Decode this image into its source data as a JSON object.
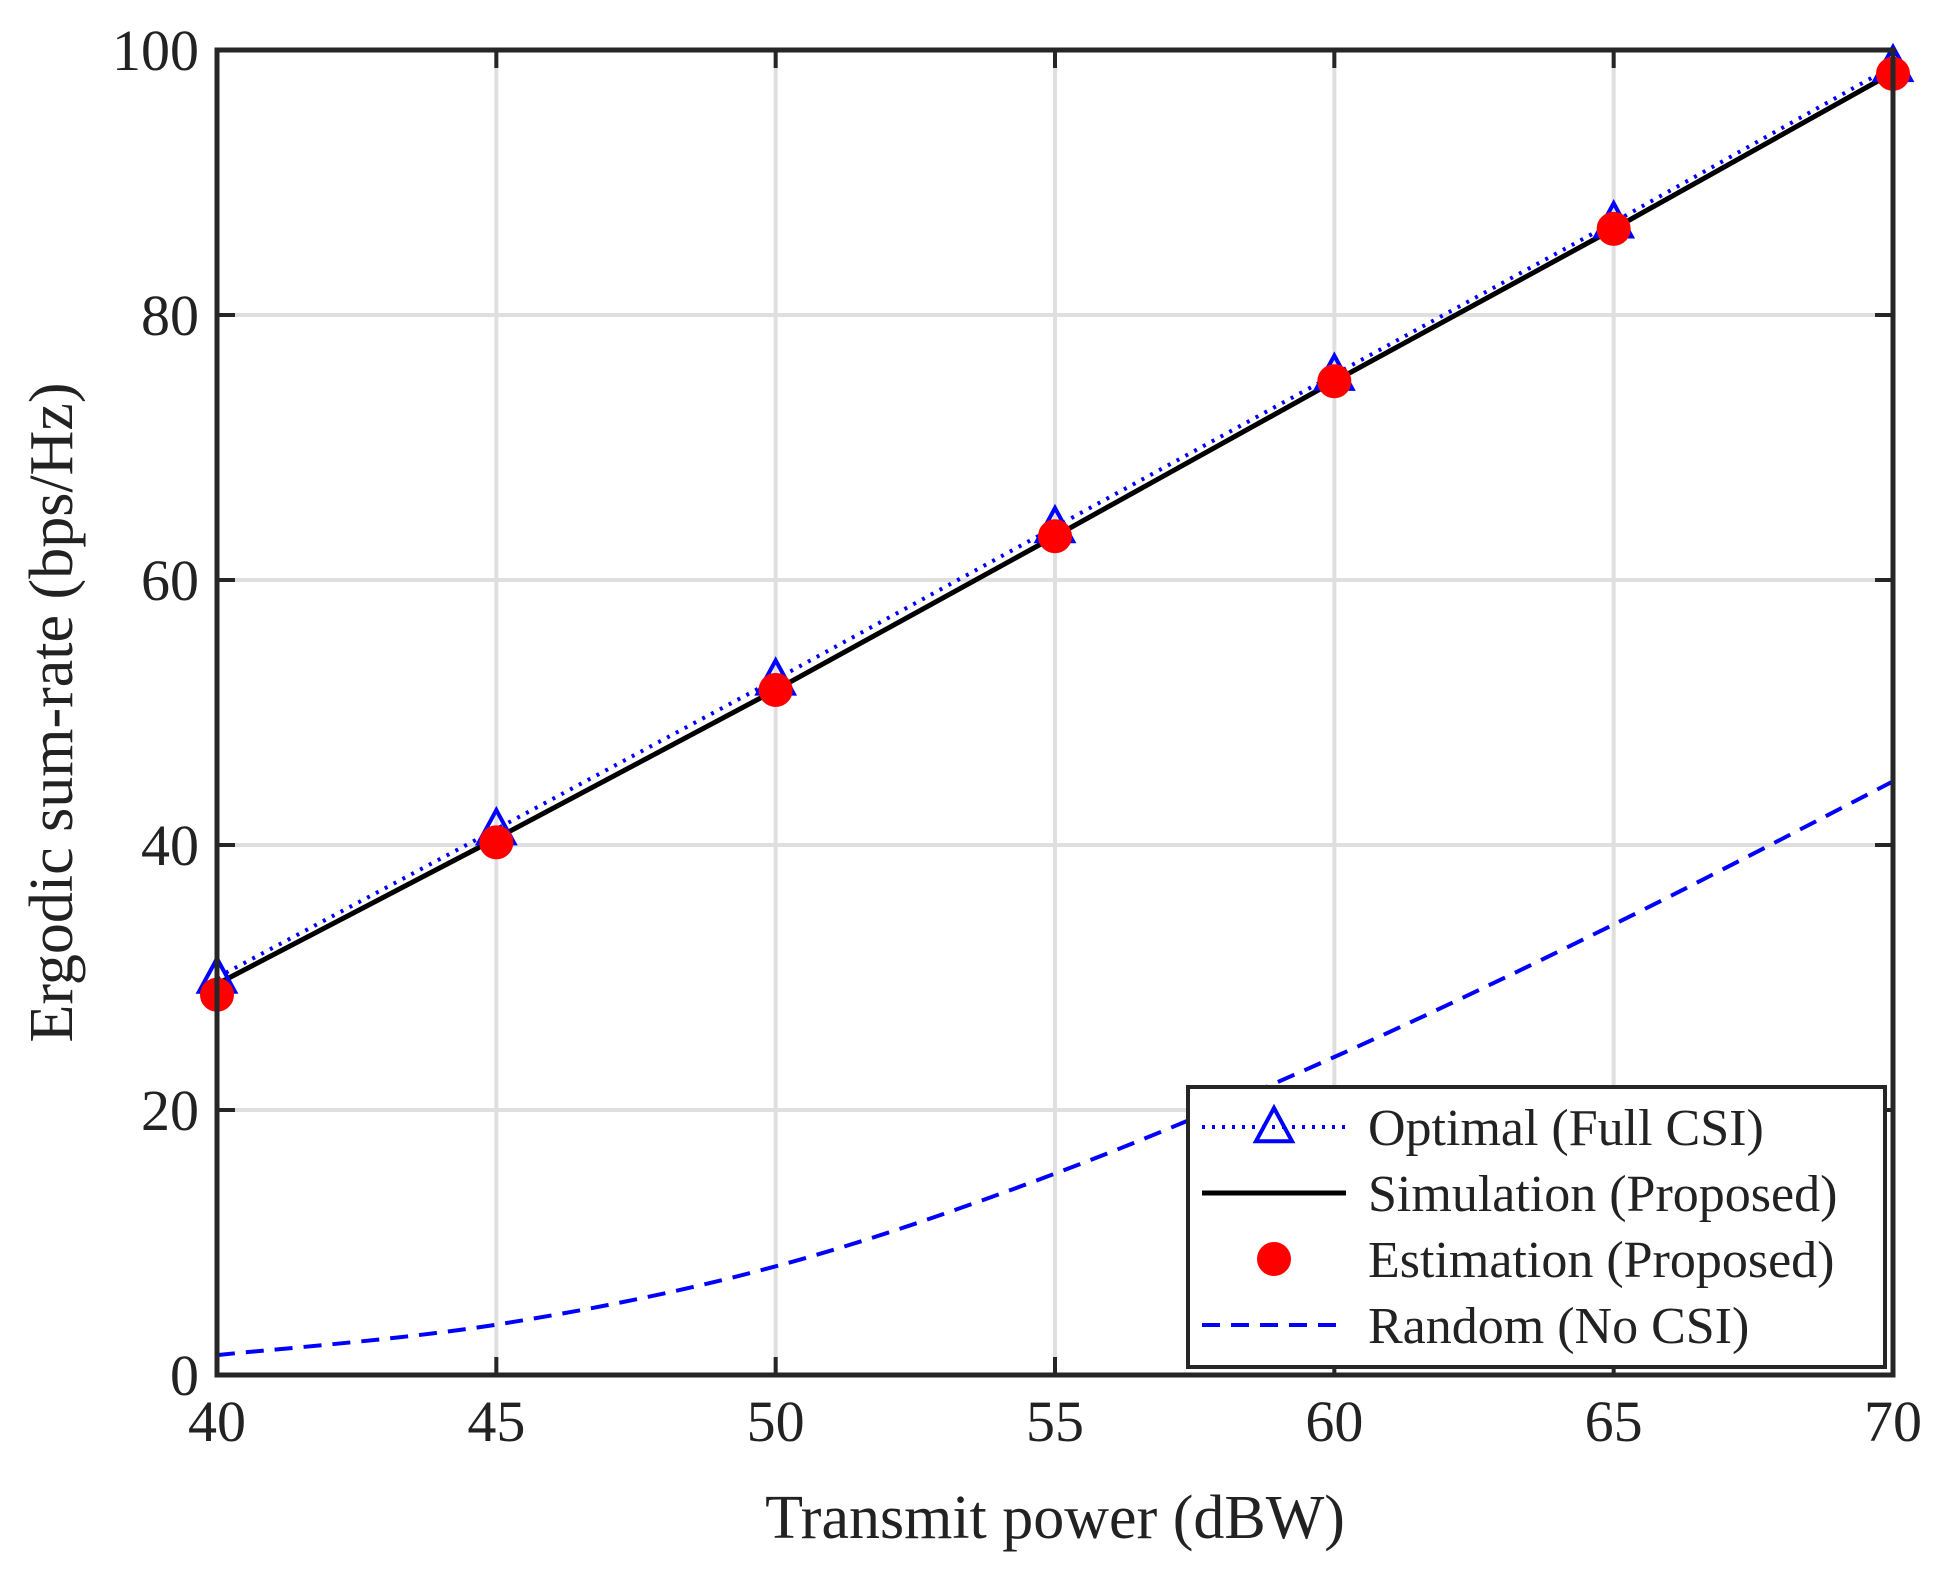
{
  "chart_data": {
    "type": "line",
    "title": "",
    "xlabel": "Transmit power (dBW)",
    "ylabel": "Ergodic sum-rate (bps/Hz)",
    "xlim": [
      40,
      70
    ],
    "ylim": [
      0,
      100
    ],
    "xticks": [
      40,
      45,
      50,
      55,
      60,
      65,
      70
    ],
    "yticks": [
      0,
      20,
      40,
      60,
      80,
      100
    ],
    "grid": true,
    "legend_position": "bottom-right",
    "x": [
      40,
      45,
      50,
      55,
      60,
      65,
      70
    ],
    "series": [
      {
        "name": "Optimal (Full CSI)",
        "values": [
          30,
          41.2,
          52.5,
          64,
          75.5,
          87,
          98.8
        ],
        "color": "#0000ff",
        "line": "dotted",
        "marker": "triangle-open"
      },
      {
        "name": "Simulation (Proposed)",
        "values": [
          29.5,
          40.5,
          51.7,
          63.3,
          75,
          86.5,
          98.3
        ],
        "color": "#000000",
        "line": "solid",
        "marker": "none"
      },
      {
        "name": "Estimation (Proposed)",
        "values": [
          28.7,
          40.2,
          51.7,
          63.3,
          75,
          86.5,
          98.2
        ],
        "color": "#ff0000",
        "line": "none",
        "marker": "circle-filled"
      },
      {
        "name": "Random (No CSI)",
        "values": [
          1.5,
          3.8,
          8.2,
          15.2,
          24,
          34,
          44.8
        ],
        "color": "#0000ff",
        "line": "dashed",
        "marker": "none"
      }
    ]
  }
}
